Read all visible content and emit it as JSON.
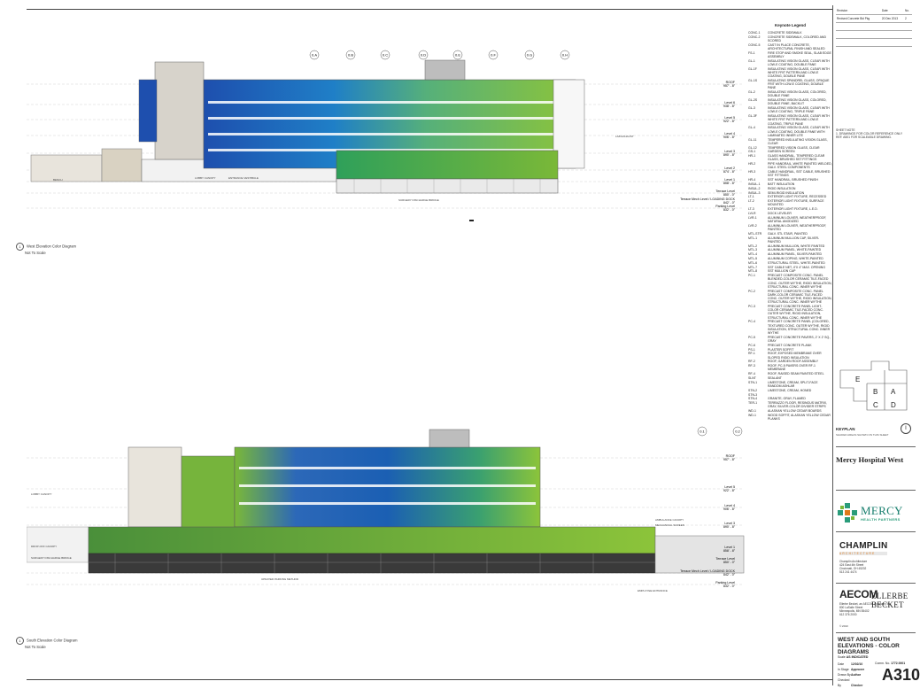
{
  "views": [
    {
      "caption": "West Elevation Color Diagram",
      "note": "Not To Scale",
      "number": "1"
    },
    {
      "caption": "South Elevation Color Diagram",
      "note": "Not To Scale",
      "number": "1"
    }
  ],
  "gridlines_west": [
    "0.A",
    "0.B",
    "0.C",
    "0.D",
    "0.E",
    "0.F",
    "0.G",
    "0.H"
  ],
  "gridlines_south": [
    "0.1",
    "0.2"
  ],
  "levels_west": [
    {
      "name": "ROOF",
      "elev": "957' - 8\""
    },
    {
      "name": "Level 6",
      "elev": "938' - 8\""
    },
    {
      "name": "Level 5",
      "elev": "922' - 8\""
    },
    {
      "name": "Level 4",
      "elev": "906' - 8\""
    },
    {
      "name": "Level 3",
      "elev": "890' - 8\""
    },
    {
      "name": "Level 2",
      "elev": "874' - 8\""
    },
    {
      "name": "Level 1",
      "elev": "858' - 8\""
    },
    {
      "name": "Terrace Level",
      "elev": "850' - 0\""
    },
    {
      "name": "Terrace Mech Level / LOADING DOCK",
      "elev": "842' - 0\""
    },
    {
      "name": "Parking Level",
      "elev": "832' - 0\""
    }
  ],
  "levels_south": [
    {
      "name": "ROOF",
      "elev": "957' - 8\""
    },
    {
      "name": "Level 6",
      "elev": "938' - 8\""
    },
    {
      "name": "Level 5",
      "elev": "922' - 8\""
    },
    {
      "name": "Level 4",
      "elev": "906' - 8\""
    },
    {
      "name": "Level 3",
      "elev": "890' - 8\""
    },
    {
      "name": "Level 2",
      "elev": "874' - 8\""
    },
    {
      "name": "Level 1",
      "elev": "858' - 8\""
    },
    {
      "name": "Terrace Level",
      "elev": "850' - 0\""
    },
    {
      "name": "Terrace Mech Level / LOADING DOCK",
      "elev": "842' - 0\""
    },
    {
      "name": "Parking Level",
      "elev": "832' - 0\""
    }
  ],
  "callouts_west": [
    "LOBBY CANOPY",
    "ENTRANCE VESTIBULE",
    "SURGERY DISCHARGE BRIDGE",
    "LAB EXHAUST",
    "BENCH"
  ],
  "callouts_south": [
    "LOBBY CANOPY",
    "DROP-OFF CANOPY",
    "SURGERY DISCHARGE BRIDGE",
    "UPDATED PARKING METHOD",
    "AMBULANCE CANOPY",
    "MECHANICAL SCREEN",
    "EMPLOYEE ENTRANCE"
  ],
  "legend": {
    "title": "Keynote Legend",
    "items": [
      {
        "code": "CONC-1",
        "desc": "CONCRETE SIDEWALK"
      },
      {
        "code": "CONC-2",
        "desc": "CONCRETE SIDEWALK, COLORED AND SCORED"
      },
      {
        "code": "CONC-5",
        "desc": "CAST IN PLACE CONCRETE, ARCHITECTURAL FINISH AND SEALED"
      },
      {
        "code": "FS-1",
        "desc": "FIRE STOP AND SMOKE SEAL, SLAB EDGE ASSEMBLY"
      },
      {
        "code": "GL-1",
        "desc": "INSULATING VISION GLASS, CLEAR WITH LOW-E COATING, DOUBLE PANE"
      },
      {
        "code": "GL-1F",
        "desc": "INSULATING VISION GLASS, CLEAR WITH WHITE FRIT PATTERN AND LOW-E COATING, DOUBLE PANE"
      },
      {
        "code": "GL-1S",
        "desc": "INSULATING SPANDREL GLASS, OPAQUE FRIT WITH LOW-E COATING, DOUBLE PANE"
      },
      {
        "code": "GL-2",
        "desc": "INSULATING VISION GLASS, COLORED, DOUBLE PANE"
      },
      {
        "code": "GL-2S",
        "desc": "INSULATING VISION GLASS, COLORED, DOUBLE PANE, BACKLIT"
      },
      {
        "code": "GL-3",
        "desc": "INSULATING VISION GLASS, CLEAR WITH LOW-E COATING, TRIPLE PANE"
      },
      {
        "code": "GL-3F",
        "desc": "INSULATING VISION GLASS, CLEAR WITH WHITE FRIT PATTERN AND LOW-E COATING, TRIPLE PANE"
      },
      {
        "code": "GL-4",
        "desc": "INSULATING VISION GLASS, CLEAR WITH LOW-E COATING, DOUBLE PANE WITH LAMINATED INNER LITE"
      },
      {
        "code": "GL-11",
        "desc": "TEMPERED INSULATING VISION GLASS, CLEAR"
      },
      {
        "code": "GL-12",
        "desc": "TEMPERED VISION GLASS, CLEAR"
      },
      {
        "code": "GS-1",
        "desc": "GARDEN SCREEN"
      },
      {
        "code": "HR-1",
        "desc": "GLASS HANDRAIL, TEMPERED CLEAR GLASS, BRUSHED SST FITTINGS"
      },
      {
        "code": "HR-2",
        "desc": "PIPE HANDRAIL, WHITE PAINTED WELDED, GALV. STEEL COMPONENTS"
      },
      {
        "code": "HR-3",
        "desc": "CABLE HANDRAIL, SST CABLE, BRUSHED SST FITTINGS"
      },
      {
        "code": "HR-4",
        "desc": "SST HANDRAIL, BRUSHED FINISH"
      },
      {
        "code": "INSUL-1",
        "desc": "BATT INSULATION"
      },
      {
        "code": "INSUL-2",
        "desc": "RIGID INSULATION"
      },
      {
        "code": "INSUL-3",
        "desc": "SEMI-RIGID INSULATION"
      },
      {
        "code": "LT-1",
        "desc": "EXTERIOR LIGHT FIXTURE, RECESSED"
      },
      {
        "code": "LT-2",
        "desc": "EXTERIOR LIGHT FIXTURE, SURFACE MOUNTED"
      },
      {
        "code": "LT-3",
        "desc": "EXTERIOR LIGHT FIXTURE, L.E.D."
      },
      {
        "code": "LVLR",
        "desc": "DOCK LEVELER"
      },
      {
        "code": "LVR-1",
        "desc": "ALUMINUM LOUVER, WEATHERPROOF, NATURAL ANODIZED"
      },
      {
        "code": "LVR-2",
        "desc": "ALUMINUM LOUVER, WEATHERPROOF, PAINTED"
      },
      {
        "code": "MTL-STR",
        "desc": "GALV. STL STAIR, PAINTED"
      },
      {
        "code": "MTL-1",
        "desc": "ALUMINUM MULLION CAP, SILVER-PAINTED"
      },
      {
        "code": "MTL-2",
        "desc": "ALUMINUM MULLION, WHITE PAINTED"
      },
      {
        "code": "MTL-3",
        "desc": "ALUMINUM PANEL, WHITE-PAINTED"
      },
      {
        "code": "MTL-4",
        "desc": "ALUMINUM PANEL, SILVER-PAINTED"
      },
      {
        "code": "MTL-5",
        "desc": "ALUMINUM COPING, WHITE-PAINTED"
      },
      {
        "code": "MTL-6",
        "desc": "STRUCTURAL STEEL, WHITE-PAINTED"
      },
      {
        "code": "MTL-7",
        "desc": "SST CABLE NET, 4\"X 4\" MAX. OPENING"
      },
      {
        "code": "MTL-8",
        "desc": "SST MULLION CAP"
      },
      {
        "code": "PC-1",
        "desc": "PRECAST COMPOSITE CONC. PANEL BLENDED-COLOR CERAMIC TILE-FACED CONC. OUTER WYTHE, RIGID INSULATION, STRUCTURAL CONC. INNER WYTHE"
      },
      {
        "code": "PC-2",
        "desc": "PRECAST COMPOSITE CONC. PANEL DARK-COLOR CERAMIC TILE-FACED CONC. OUTER WYTHE, RIGID INSULATION, STRUCTURAL CONC. INNER WYTHE"
      },
      {
        "code": "PC-3",
        "desc": "PRECAST CONCRETE PANEL LIGHT-COLOR CERAMIC TILE-FACED CONC. OUTER WYTHE, RIGID INSULATION, STRUCTURAL CONC. INNER WYTHE"
      },
      {
        "code": "PC-4",
        "desc": "PRECAST CONCRETE PANEL (COLORED, TEXTURED CONC. OUTER WYTHE, RIGID INSULATION, STRUCTURAL CONC. INNER WYTHE"
      },
      {
        "code": "PC-5",
        "desc": "PRECAST CONCRETE PAVERS, 2' X 2' SQ., GRAY"
      },
      {
        "code": "PC-6",
        "desc": "PRECAST CONCRETE PLANK"
      },
      {
        "code": "PS-1",
        "desc": "PLASTER SOFFIT"
      },
      {
        "code": "RF-1",
        "desc": "ROOF, EXPOSED MEMBRANE OVER SLOPED RIGID INSULATION"
      },
      {
        "code": "RF-2",
        "desc": "ROOF, GARDEN ROOF ASSEMBLY"
      },
      {
        "code": "RF-3",
        "desc": "ROOF, PC-5 PAVERS OVER RF-1 MEMBRANE"
      },
      {
        "code": "RF-4",
        "desc": "ROOF, RAISED SEAM PAINTED STEEL"
      },
      {
        "code": "SLNT",
        "desc": "SEALANT"
      },
      {
        "code": "STN-1",
        "desc": "LIMESTONE, CREAM, SPLIT-FACE RANDOM ASHLAR"
      },
      {
        "code": "STN-2",
        "desc": "LIMESTONE, CREAM, HONED"
      },
      {
        "code": "STN-3",
        "desc": ""
      },
      {
        "code": "STN-4",
        "desc": "GRANITE, GRAY, FLAMED"
      },
      {
        "code": "TER-1",
        "desc": "TERRAZZO FLOOR, RESINOUS MATRIX, GRAY, SILVER-COLOR DIVIDER STRIPS"
      },
      {
        "code": "WD-1",
        "desc": "ALASKAN YELLOW CEDAR BOARDS"
      },
      {
        "code": "WD-1",
        "desc": "WOOD SOFFIT, ALASKAN YELLOW CEDAR PLANKS"
      }
    ]
  },
  "titleblock": {
    "rev_header": [
      "Revision",
      "Date",
      "No."
    ],
    "rev_rows": [
      [
        "Revised Concrete Bid Pkg",
        "20 Dec 2013",
        "2"
      ]
    ],
    "notes_title": "SHEET NOTE",
    "notes": [
      "1. DRAWINGS FOR COLOR REFERENCE ONLY",
      "REF. A501 FOR SCALEABLE DRAWING."
    ],
    "keyplan_label": "KEYPLAN",
    "keyplan_sub": "SHADED AREAS SHOWN ON THIS SHEET",
    "keyplan_icon": "I",
    "keyplan_areas": [
      "E",
      "B",
      "A",
      "C",
      "D"
    ],
    "project": "Mercy Hospital West",
    "mercy_name": "MERCY",
    "mercy_sub": "HEALTH PARTNERS",
    "champlin_name": "CHAMPLIN",
    "champlin_sub": "ARCHITECTURE",
    "champlin_addr": [
      "Champlin Architecture",
      "424 East 4th Street",
      "Cincinnati, OH 45202",
      "513 241 4474"
    ],
    "aecom_name": "AECOM",
    "ellerbe_name": "ELLERBE BECKET",
    "aecom_addr": [
      "Ellerbe Becket, an AECOM Company Inc.",
      "800 LaSalle Street",
      "Minneapolis, MN 55402",
      "612 376 2000"
    ],
    "copyright": "© 2013",
    "sheet_title": [
      "WEST AND SOUTH",
      "ELEVATIONS - COLOR",
      "DIAGRAMS"
    ],
    "scale_label": "Scale",
    "scale_value": "AS INDICATED",
    "date_label": "Date",
    "date_value": "12/02/10",
    "comm_label": "Comm. No.",
    "comm_value": "1772.0001",
    "stage_label": "In Stage",
    "stage_value": "Approver",
    "drawn_label": "Drawn By",
    "drawn_value": "Author",
    "checked_label": "Checked By",
    "checked_value": "Checker",
    "sheet_number": "A310"
  },
  "colors": {
    "blue": "#1e66b6",
    "green": "#79b43c",
    "teal": "#2aa0a0",
    "concrete": "#d8d4cc",
    "dark": "#3a3a3a",
    "mercy": "#157d6c"
  }
}
